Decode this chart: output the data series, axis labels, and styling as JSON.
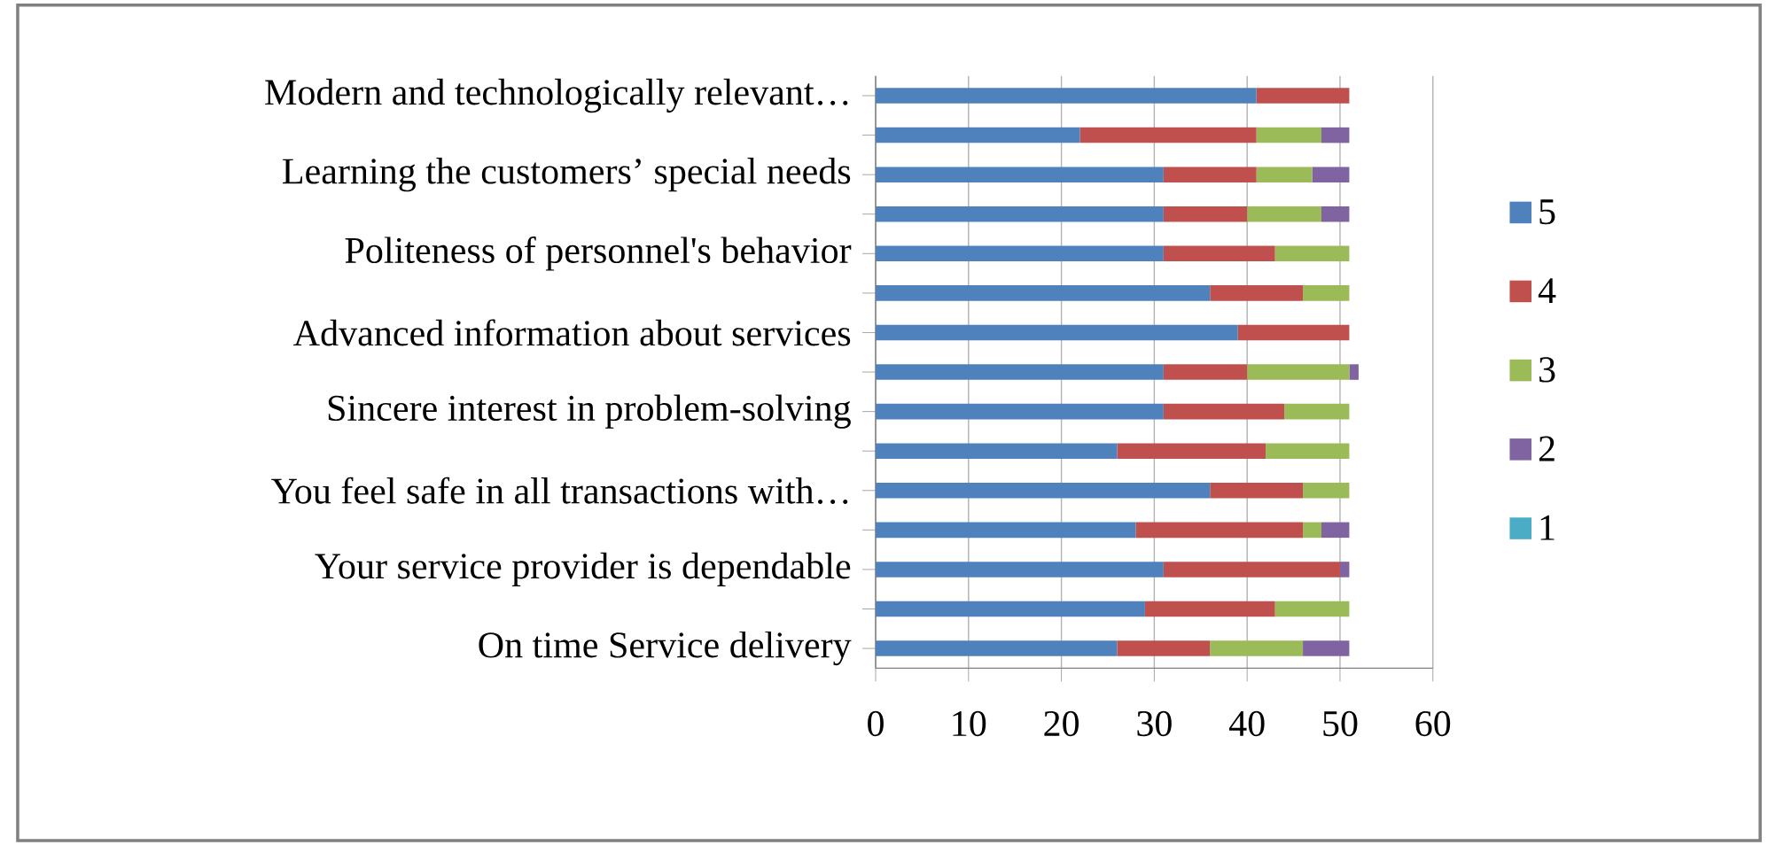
{
  "chart_data": {
    "type": "bar",
    "orientation": "horizontal",
    "stacked": true,
    "categories": [
      "Modern and technologically relevant…",
      null,
      "Learning the customers’ special needs",
      null,
      "Politeness of personnel's behavior",
      null,
      "Advanced information about services",
      null,
      "Sincere interest in problem-solving",
      null,
      "You feel safe in all transactions with…",
      null,
      "Your service provider is dependable",
      null,
      "On time Service delivery"
    ],
    "series": [
      {
        "name": "5",
        "color": "#4f81bd",
        "values": [
          41,
          22,
          31,
          31,
          31,
          36,
          39,
          31,
          31,
          26,
          36,
          28,
          31,
          29,
          26
        ]
      },
      {
        "name": "4",
        "color": "#c0504d",
        "values": [
          10,
          19,
          10,
          9,
          12,
          10,
          12,
          9,
          13,
          16,
          10,
          18,
          19,
          14,
          10
        ]
      },
      {
        "name": "3",
        "color": "#9bbb59",
        "values": [
          0,
          7,
          6,
          8,
          8,
          5,
          0,
          11,
          7,
          9,
          5,
          2,
          0,
          8,
          10
        ]
      },
      {
        "name": "2",
        "color": "#8064a2",
        "values": [
          0,
          3,
          4,
          3,
          0,
          0,
          0,
          1,
          0,
          0,
          0,
          3,
          1,
          0,
          5
        ]
      },
      {
        "name": "1",
        "color": "#4bacc6",
        "values": [
          0,
          0,
          0,
          0,
          0,
          0,
          0,
          0,
          0,
          0,
          0,
          0,
          0,
          0,
          0
        ]
      }
    ],
    "xlim": [
      0,
      60
    ],
    "xticks": [
      0,
      10,
      20,
      30,
      40,
      50,
      60
    ],
    "grid": "x",
    "legend": "right"
  }
}
